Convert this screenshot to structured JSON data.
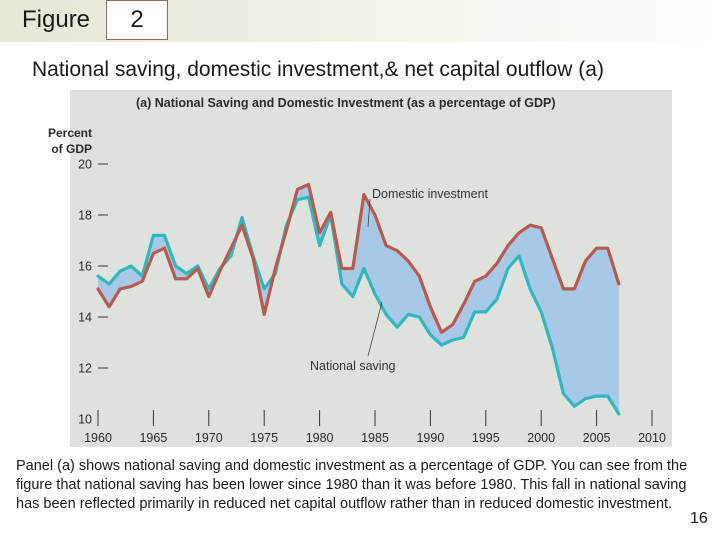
{
  "header": {
    "figure_label": "Figure",
    "figure_number": "2"
  },
  "slide": {
    "title": "National saving, domestic investment,& net capital outflow (a)",
    "caption": "Panel (a) shows national saving and domestic investment as a percentage of GDP. You can see from the figure that national saving has been lower since 1980 than it was before 1980. This fall in national saving has been reflected primarily in reduced net capital outflow  rather than in reduced domestic investment.",
    "page_number": "16"
  },
  "colors": {
    "investment_line": "#b85a4f",
    "saving_line": "#32b6c0",
    "gap_fill": "#a7c9e6",
    "panel_bg": "#dde3dc",
    "axis": "#333333"
  },
  "chart_data": {
    "type": "line",
    "title": "(a) National Saving and Domestic Investment (as a percentage of GDP)",
    "ylabel_lines": [
      "Percent",
      "of GDP"
    ],
    "xlabel": "",
    "xlim": [
      1960,
      2010
    ],
    "ylim": [
      10,
      20
    ],
    "x_ticks": [
      1960,
      1965,
      1970,
      1975,
      1980,
      1985,
      1990,
      1995,
      2000,
      2005,
      2010
    ],
    "y_ticks": [
      10,
      12,
      14,
      16,
      18,
      20
    ],
    "fill_between_series": true,
    "years": [
      1960,
      1961,
      1962,
      1963,
      1964,
      1965,
      1966,
      1967,
      1968,
      1969,
      1970,
      1971,
      1972,
      1973,
      1974,
      1975,
      1976,
      1977,
      1978,
      1979,
      1980,
      1981,
      1982,
      1983,
      1984,
      1985,
      1986,
      1987,
      1988,
      1989,
      1990,
      1991,
      1992,
      1993,
      1994,
      1995,
      1996,
      1997,
      1998,
      1999,
      2000,
      2001,
      2002,
      2003,
      2004,
      2005,
      2006,
      2007
    ],
    "series": [
      {
        "name": "Domestic investment",
        "values": [
          15.1,
          14.4,
          15.1,
          15.2,
          15.4,
          16.5,
          16.7,
          15.5,
          15.5,
          15.9,
          14.8,
          15.8,
          16.7,
          17.6,
          16.3,
          14.1,
          15.9,
          17.4,
          19.0,
          19.2,
          17.3,
          18.1,
          15.9,
          15.9,
          18.8,
          18.0,
          16.8,
          16.6,
          16.2,
          15.6,
          14.4,
          13.4,
          13.7,
          14.5,
          15.4,
          15.6,
          16.1,
          16.8,
          17.3,
          17.6,
          17.5,
          16.3,
          15.1,
          15.1,
          16.2,
          16.7,
          16.7,
          15.3
        ]
      },
      {
        "name": "National saving",
        "values": [
          15.6,
          15.3,
          15.8,
          16.0,
          15.6,
          17.2,
          17.2,
          16.0,
          15.7,
          16.0,
          15.1,
          15.9,
          16.4,
          17.9,
          16.4,
          15.1,
          15.7,
          17.6,
          18.6,
          18.7,
          16.8,
          18.0,
          15.3,
          14.8,
          15.9,
          14.9,
          14.1,
          13.6,
          14.1,
          14.0,
          13.3,
          12.9,
          13.1,
          13.2,
          14.2,
          14.2,
          14.7,
          15.9,
          16.4,
          15.1,
          14.2,
          12.8,
          11.0,
          10.5,
          10.8,
          10.9,
          10.9,
          10.2
        ]
      }
    ],
    "annotations": [
      {
        "text": "Domestic investment",
        "points_to": "Domestic investment"
      },
      {
        "text": "National saving",
        "points_to": "National saving"
      }
    ]
  }
}
